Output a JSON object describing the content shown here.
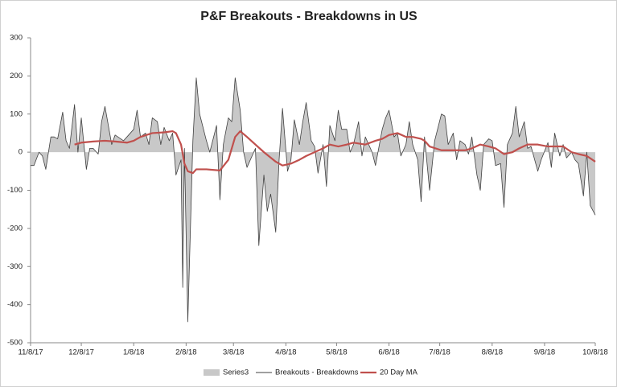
{
  "chart_data": {
    "type": "line",
    "title": "P&F Breakouts - Breakdowns in US",
    "xlim": [
      "2017-11-08",
      "2018-10-08"
    ],
    "xticks": [
      {
        "value": "2017-11-08",
        "label": "11/8/17"
      },
      {
        "value": "2017-12-08",
        "label": "12/8/17"
      },
      {
        "value": "2018-01-08",
        "label": "1/8/18"
      },
      {
        "value": "2018-02-08",
        "label": "2/8/18"
      },
      {
        "value": "2018-03-08",
        "label": "3/8/18"
      },
      {
        "value": "2018-04-08",
        "label": "4/8/18"
      },
      {
        "value": "2018-05-08",
        "label": "5/8/18"
      },
      {
        "value": "2018-06-08",
        "label": "6/8/18"
      },
      {
        "value": "2018-07-08",
        "label": "7/8/18"
      },
      {
        "value": "2018-08-08",
        "label": "8/8/18"
      },
      {
        "value": "2018-09-08",
        "label": "9/8/18"
      },
      {
        "value": "2018-10-08",
        "label": "10/8/18"
      }
    ],
    "ylim": [
      -500,
      300
    ],
    "yticks": [
      -500,
      -400,
      -300,
      -200,
      -100,
      0,
      100,
      200,
      300
    ],
    "grid": false,
    "legend": "bottom",
    "x": [
      "2017-11-08",
      "2017-11-10",
      "2017-11-13",
      "2017-11-15",
      "2017-11-17",
      "2017-11-20",
      "2017-11-22",
      "2017-11-24",
      "2017-11-27",
      "2017-11-29",
      "2017-12-01",
      "2017-12-04",
      "2017-12-06",
      "2017-12-08",
      "2017-12-11",
      "2017-12-13",
      "2017-12-15",
      "2017-12-18",
      "2017-12-20",
      "2017-12-22",
      "2017-12-26",
      "2017-12-28",
      "2018-01-02",
      "2018-01-04",
      "2018-01-08",
      "2018-01-10",
      "2018-01-12",
      "2018-01-15",
      "2018-01-17",
      "2018-01-19",
      "2018-01-22",
      "2018-01-24",
      "2018-01-26",
      "2018-01-29",
      "2018-01-31",
      "2018-02-02",
      "2018-02-05",
      "2018-02-06",
      "2018-02-07",
      "2018-02-09",
      "2018-02-12",
      "2018-02-14",
      "2018-02-16",
      "2018-02-20",
      "2018-02-22",
      "2018-02-26",
      "2018-02-28",
      "2018-03-02",
      "2018-03-05",
      "2018-03-07",
      "2018-03-09",
      "2018-03-12",
      "2018-03-14",
      "2018-03-16",
      "2018-03-19",
      "2018-03-21",
      "2018-03-23",
      "2018-03-26",
      "2018-03-28",
      "2018-03-30",
      "2018-04-02",
      "2018-04-04",
      "2018-04-06",
      "2018-04-09",
      "2018-04-11",
      "2018-04-13",
      "2018-04-16",
      "2018-04-18",
      "2018-04-20",
      "2018-04-23",
      "2018-04-25",
      "2018-04-27",
      "2018-04-30",
      "2018-05-02",
      "2018-05-04",
      "2018-05-07",
      "2018-05-09",
      "2018-05-11",
      "2018-05-14",
      "2018-05-16",
      "2018-05-18",
      "2018-05-21",
      "2018-05-23",
      "2018-05-25",
      "2018-05-29",
      "2018-05-31",
      "2018-06-04",
      "2018-06-06",
      "2018-06-08",
      "2018-06-11",
      "2018-06-13",
      "2018-06-15",
      "2018-06-18",
      "2018-06-20",
      "2018-06-22",
      "2018-06-25",
      "2018-06-27",
      "2018-06-29",
      "2018-07-02",
      "2018-07-05",
      "2018-07-09",
      "2018-07-11",
      "2018-07-13",
      "2018-07-16",
      "2018-07-18",
      "2018-07-20",
      "2018-07-23",
      "2018-07-25",
      "2018-07-27",
      "2018-07-30",
      "2018-08-01",
      "2018-08-03",
      "2018-08-06",
      "2018-08-08",
      "2018-08-10",
      "2018-08-13",
      "2018-08-15",
      "2018-08-17",
      "2018-08-20",
      "2018-08-22",
      "2018-08-24",
      "2018-08-27",
      "2018-08-29",
      "2018-08-31",
      "2018-09-04",
      "2018-09-06",
      "2018-09-10",
      "2018-09-12",
      "2018-09-14",
      "2018-09-17",
      "2018-09-19",
      "2018-09-21",
      "2018-09-24",
      "2018-09-26",
      "2018-09-28",
      "2018-10-01",
      "2018-10-03",
      "2018-10-05",
      "2018-10-08"
    ],
    "series": [
      {
        "name": "Series3",
        "type": "area",
        "color": "#c8c8c8",
        "values": [
          -35,
          -35,
          0,
          -10,
          -45,
          40,
          40,
          35,
          105,
          30,
          10,
          125,
          0,
          90,
          -45,
          10,
          10,
          -5,
          80,
          120,
          20,
          45,
          30,
          40,
          60,
          110,
          40,
          50,
          20,
          90,
          80,
          20,
          65,
          30,
          50,
          -60,
          -20,
          -355,
          10,
          -445,
          30,
          195,
          100,
          30,
          0,
          70,
          -125,
          20,
          90,
          80,
          195,
          110,
          0,
          -40,
          -10,
          10,
          -245,
          -60,
          -155,
          -110,
          -210,
          -20,
          115,
          -50,
          -20,
          85,
          20,
          80,
          130,
          30,
          15,
          -55,
          20,
          -90,
          70,
          30,
          110,
          60,
          60,
          0,
          20,
          80,
          -10,
          40,
          0,
          -35,
          60,
          90,
          110,
          40,
          50,
          -10,
          20,
          80,
          20,
          -20,
          -130,
          40,
          -100,
          30,
          100,
          95,
          20,
          50,
          -20,
          30,
          20,
          -5,
          40,
          -60,
          -100,
          20,
          35,
          30,
          -35,
          -30,
          -145,
          20,
          50,
          120,
          40,
          80,
          10,
          15,
          -50,
          -20,
          25,
          -40,
          50,
          -10,
          20,
          -15,
          0,
          -20,
          -30,
          -115,
          0,
          -140,
          -165
        ]
      },
      {
        "name": "Breakouts - Breakdowns",
        "type": "line",
        "color": "#404040",
        "values": [
          -35,
          -35,
          0,
          -10,
          -45,
          40,
          40,
          35,
          105,
          30,
          10,
          125,
          0,
          90,
          -45,
          10,
          10,
          -5,
          80,
          120,
          20,
          45,
          30,
          40,
          60,
          110,
          40,
          50,
          20,
          90,
          80,
          20,
          65,
          30,
          50,
          -60,
          -20,
          -355,
          10,
          -445,
          30,
          195,
          100,
          30,
          0,
          70,
          -125,
          20,
          90,
          80,
          195,
          110,
          0,
          -40,
          -10,
          10,
          -245,
          -60,
          -155,
          -110,
          -210,
          -20,
          115,
          -50,
          -20,
          85,
          20,
          80,
          130,
          30,
          15,
          -55,
          20,
          -90,
          70,
          30,
          110,
          60,
          60,
          0,
          20,
          80,
          -10,
          40,
          0,
          -35,
          60,
          90,
          110,
          40,
          50,
          -10,
          20,
          80,
          20,
          -20,
          -130,
          40,
          -100,
          30,
          100,
          95,
          20,
          50,
          -20,
          30,
          20,
          -5,
          40,
          -60,
          -100,
          20,
          35,
          30,
          -35,
          -30,
          -145,
          20,
          50,
          120,
          40,
          80,
          10,
          15,
          -50,
          -20,
          25,
          -40,
          50,
          -10,
          20,
          -15,
          0,
          -20,
          -30,
          -115,
          0,
          -140,
          -165
        ]
      },
      {
        "name": "20 Day MA",
        "type": "line",
        "color": "#c0504d",
        "x": [
          "2017-12-04",
          "2017-12-08",
          "2017-12-15",
          "2017-12-22",
          "2017-12-28",
          "2018-01-04",
          "2018-01-08",
          "2018-01-12",
          "2018-01-19",
          "2018-01-26",
          "2018-01-31",
          "2018-02-02",
          "2018-02-05",
          "2018-02-07",
          "2018-02-09",
          "2018-02-12",
          "2018-02-14",
          "2018-02-20",
          "2018-02-28",
          "2018-03-05",
          "2018-03-09",
          "2018-03-12",
          "2018-03-16",
          "2018-03-21",
          "2018-03-26",
          "2018-04-02",
          "2018-04-06",
          "2018-04-11",
          "2018-04-16",
          "2018-04-20",
          "2018-04-25",
          "2018-04-30",
          "2018-05-04",
          "2018-05-09",
          "2018-05-14",
          "2018-05-18",
          "2018-05-25",
          "2018-05-31",
          "2018-06-04",
          "2018-06-08",
          "2018-06-13",
          "2018-06-18",
          "2018-06-22",
          "2018-06-27",
          "2018-06-29",
          "2018-07-02",
          "2018-07-09",
          "2018-07-16",
          "2018-07-23",
          "2018-07-27",
          "2018-08-01",
          "2018-08-06",
          "2018-08-10",
          "2018-08-15",
          "2018-08-20",
          "2018-08-24",
          "2018-08-29",
          "2018-09-04",
          "2018-09-10",
          "2018-09-14",
          "2018-09-19",
          "2018-09-24",
          "2018-09-28",
          "2018-10-03",
          "2018-10-08"
        ],
        "values": [
          20,
          25,
          28,
          30,
          28,
          25,
          30,
          40,
          50,
          52,
          55,
          50,
          20,
          -30,
          -50,
          -55,
          -45,
          -45,
          -48,
          -20,
          40,
          55,
          40,
          20,
          0,
          -25,
          -35,
          -30,
          -20,
          -10,
          0,
          10,
          20,
          15,
          20,
          25,
          20,
          30,
          35,
          45,
          50,
          40,
          40,
          35,
          30,
          15,
          5,
          5,
          5,
          10,
          20,
          15,
          10,
          -5,
          0,
          10,
          20,
          20,
          15,
          15,
          15,
          0,
          -5,
          -10,
          -25
        ]
      }
    ]
  }
}
